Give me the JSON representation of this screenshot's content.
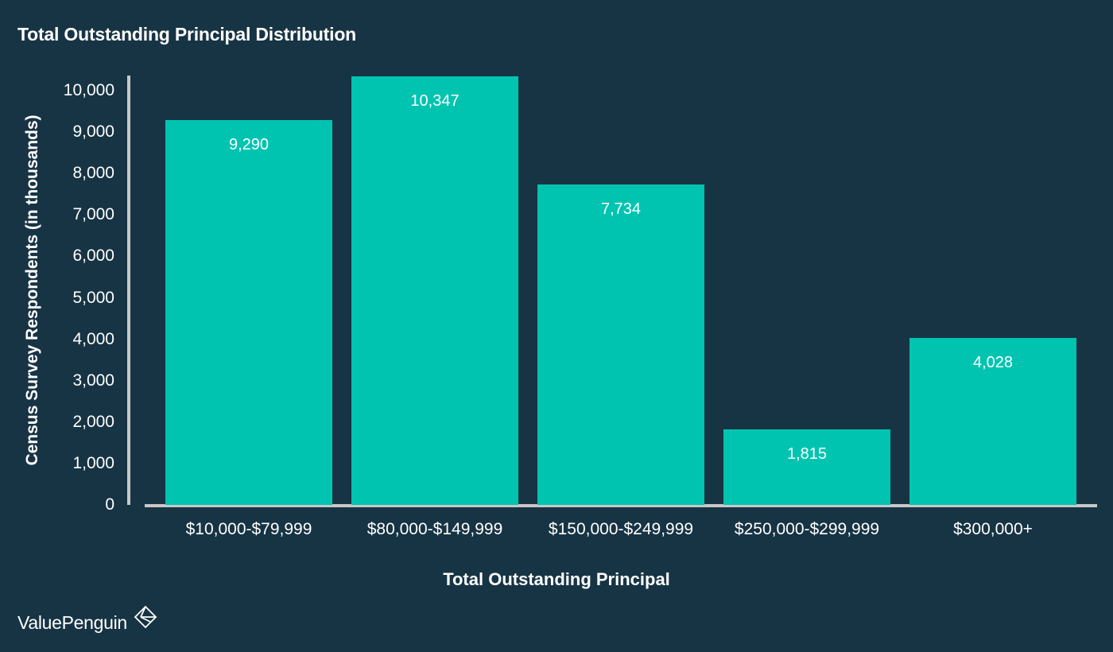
{
  "chart_data": {
    "type": "bar",
    "title": "Total Outstanding Principal Distribution",
    "xlabel": "Total Outstanding Principal",
    "ylabel": "Census Survey Respondents (in thousands)",
    "categories": [
      "$10,000-$79,999",
      "$80,000-$149,999",
      "$150,000-$249,999",
      "$250,000-$299,999",
      "$300,000+"
    ],
    "values": [
      9290,
      10347,
      7734,
      1815,
      4028
    ],
    "value_labels": [
      "9,290",
      "10,347",
      "7,734",
      "1,815",
      "4,028"
    ],
    "yticks": [
      "0",
      "1,000",
      "2,000",
      "3,000",
      "4,000",
      "5,000",
      "6,000",
      "7,000",
      "8,000",
      "9,000",
      "10,000"
    ],
    "ylim": [
      0,
      10347
    ],
    "grid": false,
    "legend": null,
    "bar_color": "#00c4b0"
  },
  "colors": {
    "background": "#173444",
    "bar": "#00c4b0",
    "axis": "#c8c8c8",
    "text": "#ffffff"
  },
  "brand": {
    "name": "ValuePenguin",
    "icon": "valuepenguin-diamond-logo-icon"
  }
}
